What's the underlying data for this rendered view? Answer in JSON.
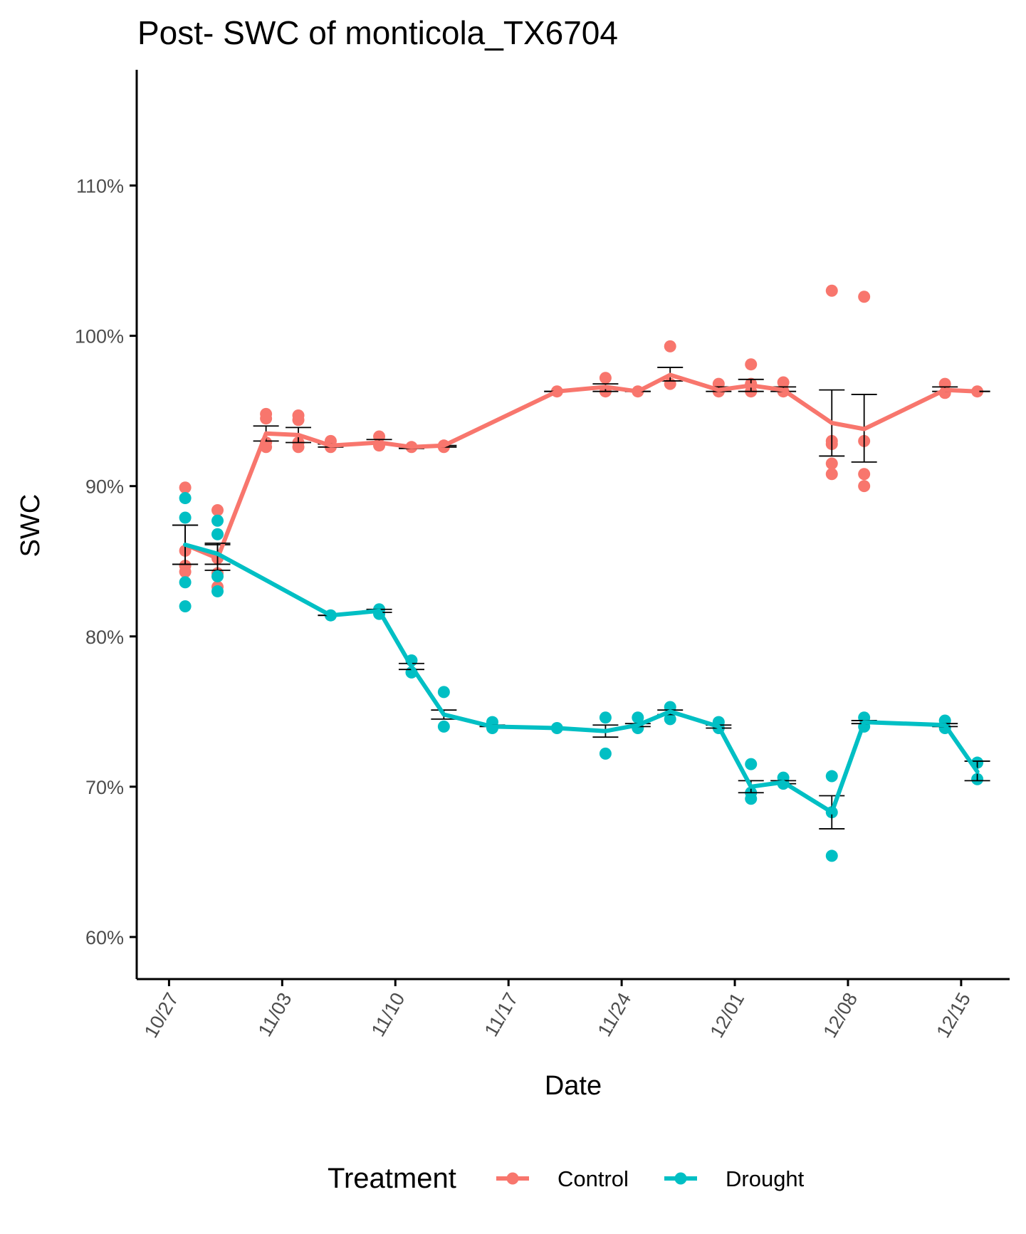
{
  "chart_data": {
    "type": "line",
    "title": "Post- SWC of monticola_TX6704",
    "xlabel": "Date",
    "ylabel": "SWC",
    "x_axis": {
      "type": "date",
      "ticks": [
        "10/27",
        "11/03",
        "11/10",
        "11/17",
        "11/24",
        "12/01",
        "12/08",
        "12/15"
      ],
      "range": [
        "10/25",
        "12/18"
      ]
    },
    "y_axis": {
      "ticks": [
        "60%",
        "70%",
        "80%",
        "90%",
        "100%",
        "110%"
      ],
      "range": [
        57.2,
        117.7
      ],
      "format": "percent"
    },
    "grid": false,
    "legend": {
      "title": "Treatment",
      "position": "bottom",
      "entries": [
        "Control",
        "Drought"
      ]
    },
    "series": [
      {
        "name": "Control",
        "color": "#F8766D",
        "mean": [
          {
            "date": "10/28",
            "y": 86.1,
            "err": [
              84.8,
              87.4
            ]
          },
          {
            "date": "10/30",
            "y": 85.2,
            "err": [
              84.4,
              86.1
            ]
          },
          {
            "date": "11/02",
            "y": 93.5,
            "err": [
              93.0,
              94.0
            ]
          },
          {
            "date": "11/04",
            "y": 93.4,
            "err": [
              92.9,
              93.9
            ]
          },
          {
            "date": "11/06",
            "y": 92.7,
            "err": [
              92.6,
              92.8
            ]
          },
          {
            "date": "11/09",
            "y": 92.9,
            "err": [
              92.8,
              93.1
            ]
          },
          {
            "date": "11/11",
            "y": 92.6,
            "err": [
              92.5,
              92.6
            ]
          },
          {
            "date": "11/13",
            "y": 92.7,
            "err": [
              92.6,
              92.7
            ]
          },
          {
            "date": "11/20",
            "y": 96.3,
            "err": [
              96.3,
              96.3
            ]
          },
          {
            "date": "11/23",
            "y": 96.6,
            "err": [
              96.3,
              96.8
            ]
          },
          {
            "date": "11/25",
            "y": 96.3,
            "err": [
              96.3,
              96.3
            ]
          },
          {
            "date": "11/27",
            "y": 97.4,
            "err": [
              97.0,
              97.9
            ]
          },
          {
            "date": "11/30",
            "y": 96.4,
            "err": [
              96.3,
              96.6
            ]
          },
          {
            "date": "12/02",
            "y": 96.7,
            "err": [
              96.3,
              97.1
            ]
          },
          {
            "date": "12/04",
            "y": 96.4,
            "err": [
              96.3,
              96.6
            ]
          },
          {
            "date": "12/07",
            "y": 94.2,
            "err": [
              92.0,
              96.4
            ]
          },
          {
            "date": "12/09",
            "y": 93.8,
            "err": [
              91.6,
              96.1
            ]
          },
          {
            "date": "12/14",
            "y": 96.4,
            "err": [
              96.3,
              96.6
            ]
          },
          {
            "date": "12/16",
            "y": 96.3,
            "err": [
              96.3,
              96.3
            ]
          }
        ],
        "points": [
          [
            "10/28",
            89.9
          ],
          [
            "10/28",
            85.7
          ],
          [
            "10/28",
            84.7
          ],
          [
            "10/28",
            84.3
          ],
          [
            "10/30",
            88.4
          ],
          [
            "10/30",
            85.2
          ],
          [
            "10/30",
            84.2
          ],
          [
            "10/30",
            83.3
          ],
          [
            "11/02",
            94.8
          ],
          [
            "11/02",
            94.5
          ],
          [
            "11/02",
            92.9
          ],
          [
            "11/02",
            92.6
          ],
          [
            "11/04",
            94.7
          ],
          [
            "11/04",
            94.4
          ],
          [
            "11/04",
            92.9
          ],
          [
            "11/04",
            92.6
          ],
          [
            "11/06",
            93.0
          ],
          [
            "11/06",
            92.6
          ],
          [
            "11/09",
            93.3
          ],
          [
            "11/09",
            92.7
          ],
          [
            "11/11",
            92.6
          ],
          [
            "11/13",
            92.7
          ],
          [
            "11/13",
            92.6
          ],
          [
            "11/20",
            96.3
          ],
          [
            "11/23",
            97.2
          ],
          [
            "11/23",
            96.3
          ],
          [
            "11/25",
            96.3
          ],
          [
            "11/27",
            99.3
          ],
          [
            "11/27",
            96.8
          ],
          [
            "11/30",
            96.8
          ],
          [
            "11/30",
            96.3
          ],
          [
            "12/02",
            98.1
          ],
          [
            "12/02",
            96.8
          ],
          [
            "12/02",
            96.3
          ],
          [
            "12/04",
            96.9
          ],
          [
            "12/04",
            96.3
          ],
          [
            "12/07",
            103.0
          ],
          [
            "12/07",
            93.0
          ],
          [
            "12/07",
            92.8
          ],
          [
            "12/07",
            91.5
          ],
          [
            "12/07",
            90.8
          ],
          [
            "12/09",
            102.6
          ],
          [
            "12/09",
            93.0
          ],
          [
            "12/09",
            90.8
          ],
          [
            "12/09",
            90.0
          ],
          [
            "12/14",
            96.8
          ],
          [
            "12/14",
            96.2
          ],
          [
            "12/16",
            96.3
          ]
        ]
      },
      {
        "name": "Drought",
        "color": "#00BFC4",
        "mean": [
          {
            "date": "10/28",
            "y": 86.1,
            "err": [
              84.8,
              87.4
            ]
          },
          {
            "date": "10/30",
            "y": 85.5,
            "err": [
              84.8,
              86.2
            ]
          },
          {
            "date": "11/06",
            "y": 81.4,
            "err": [
              81.4,
              81.4
            ]
          },
          {
            "date": "11/09",
            "y": 81.7,
            "err": [
              81.6,
              81.8
            ]
          },
          {
            "date": "11/11",
            "y": 78.0,
            "err": [
              77.8,
              78.2
            ]
          },
          {
            "date": "11/13",
            "y": 74.8,
            "err": [
              74.5,
              75.1
            ]
          },
          {
            "date": "11/16",
            "y": 74.0,
            "err": [
              74.0,
              74.1
            ]
          },
          {
            "date": "11/20",
            "y": 73.9,
            "err": [
              73.9,
              73.9
            ]
          },
          {
            "date": "11/23",
            "y": 73.7,
            "err": [
              73.3,
              74.1
            ]
          },
          {
            "date": "11/25",
            "y": 74.1,
            "err": [
              74.0,
              74.2
            ]
          },
          {
            "date": "11/27",
            "y": 75.0,
            "err": [
              74.8,
              75.1
            ]
          },
          {
            "date": "11/30",
            "y": 74.0,
            "err": [
              73.9,
              74.1
            ]
          },
          {
            "date": "12/02",
            "y": 70.0,
            "err": [
              69.6,
              70.4
            ]
          },
          {
            "date": "12/04",
            "y": 70.3,
            "err": [
              70.2,
              70.4
            ]
          },
          {
            "date": "12/07",
            "y": 68.3,
            "err": [
              67.2,
              69.4
            ]
          },
          {
            "date": "12/09",
            "y": 74.3,
            "err": [
              74.2,
              74.4
            ]
          },
          {
            "date": "12/14",
            "y": 74.1,
            "err": [
              74.0,
              74.2
            ]
          },
          {
            "date": "12/16",
            "y": 71.0,
            "err": [
              70.4,
              71.7
            ]
          }
        ],
        "points": [
          [
            "10/28",
            89.2
          ],
          [
            "10/28",
            87.9
          ],
          [
            "10/28",
            83.6
          ],
          [
            "10/28",
            82.0
          ],
          [
            "10/30",
            87.7
          ],
          [
            "10/30",
            86.8
          ],
          [
            "10/30",
            84.0
          ],
          [
            "10/30",
            83.0
          ],
          [
            "11/06",
            81.4
          ],
          [
            "11/09",
            81.8
          ],
          [
            "11/09",
            81.5
          ],
          [
            "11/11",
            78.4
          ],
          [
            "11/11",
            77.6
          ],
          [
            "11/13",
            76.3
          ],
          [
            "11/13",
            74.0
          ],
          [
            "11/16",
            74.3
          ],
          [
            "11/16",
            73.9
          ],
          [
            "11/20",
            73.9
          ],
          [
            "11/23",
            74.6
          ],
          [
            "11/23",
            72.2
          ],
          [
            "11/25",
            74.6
          ],
          [
            "11/25",
            73.9
          ],
          [
            "11/27",
            75.3
          ],
          [
            "11/27",
            74.5
          ],
          [
            "11/30",
            74.3
          ],
          [
            "11/30",
            73.9
          ],
          [
            "12/02",
            71.5
          ],
          [
            "12/02",
            69.6
          ],
          [
            "12/02",
            69.2
          ],
          [
            "12/04",
            70.6
          ],
          [
            "12/04",
            70.2
          ],
          [
            "12/07",
            70.7
          ],
          [
            "12/07",
            68.3
          ],
          [
            "12/07",
            65.4
          ],
          [
            "12/09",
            74.6
          ],
          [
            "12/09",
            74.0
          ],
          [
            "12/14",
            74.4
          ],
          [
            "12/14",
            73.9
          ],
          [
            "12/16",
            71.6
          ],
          [
            "12/16",
            70.5
          ]
        ]
      }
    ]
  }
}
